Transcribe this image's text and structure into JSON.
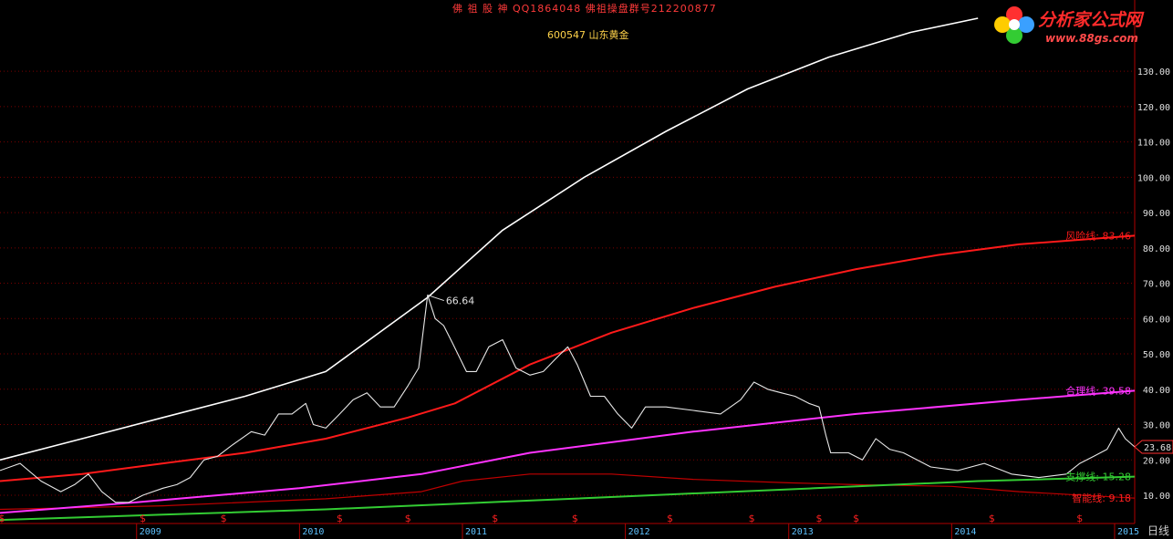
{
  "header": {
    "title": "佛 祖 股 神   QQ1864048  佛祖操盘群号212200877",
    "stock": "600547 山东黄金"
  },
  "logo": {
    "main": "分析家公式网",
    "url": "www.88gs.com"
  },
  "period_label": "日线",
  "colors": {
    "background": "#000000",
    "price": "#e8e8e8",
    "upper_curve": "#ffffff",
    "risk_line": "#ff1a1a",
    "fair_line": "#ff33ff",
    "support_line": "#33cc33",
    "smart_line": "#c00000",
    "grid": "#7a0000",
    "y_tick": "#e0e0e0",
    "x_tick": "#5ec2ff"
  },
  "chart_data": {
    "type": "line",
    "title": "600547 山东黄金",
    "xlabel": "",
    "ylabel": "",
    "x_range": [
      "2008-03-01",
      "2015-02-15"
    ],
    "ylim": [
      2.0,
      145.0
    ],
    "y_ticks": [
      10,
      20,
      30,
      40,
      50,
      60,
      70,
      80,
      90,
      100,
      110,
      120,
      130
    ],
    "x_ticks": [
      "2009",
      "2010",
      "2011",
      "2012",
      "2013",
      "2014",
      "2015"
    ],
    "grid": true,
    "last_price_tag": "23.68",
    "peak_annotation": {
      "date": "2010-10-15",
      "value": 66.64,
      "label": "66.64"
    },
    "series": [
      {
        "name": "",
        "role": "price",
        "points": [
          [
            "2008-03-01",
            17
          ],
          [
            "2008-04-15",
            19
          ],
          [
            "2008-06-01",
            14
          ],
          [
            "2008-07-15",
            11
          ],
          [
            "2008-08-15",
            13
          ],
          [
            "2008-09-15",
            16
          ],
          [
            "2008-10-15",
            11
          ],
          [
            "2008-11-15",
            8
          ],
          [
            "2008-12-15",
            8
          ],
          [
            "2009-01-15",
            10
          ],
          [
            "2009-03-01",
            12
          ],
          [
            "2009-04-01",
            13
          ],
          [
            "2009-05-01",
            15
          ],
          [
            "2009-06-01",
            20
          ],
          [
            "2009-07-01",
            21
          ],
          [
            "2009-08-01",
            24
          ],
          [
            "2009-09-15",
            28
          ],
          [
            "2009-10-15",
            27
          ],
          [
            "2009-11-15",
            33
          ],
          [
            "2009-12-15",
            33
          ],
          [
            "2010-01-15",
            36
          ],
          [
            "2010-02-01",
            30
          ],
          [
            "2010-03-01",
            29
          ],
          [
            "2010-04-01",
            33
          ],
          [
            "2010-05-01",
            37
          ],
          [
            "2010-06-01",
            39
          ],
          [
            "2010-07-01",
            35
          ],
          [
            "2010-08-01",
            35
          ],
          [
            "2010-09-01",
            41
          ],
          [
            "2010-09-25",
            46
          ],
          [
            "2010-10-15",
            66.64
          ],
          [
            "2010-11-01",
            60
          ],
          [
            "2010-11-20",
            58
          ],
          [
            "2010-12-10",
            53
          ],
          [
            "2011-01-10",
            45
          ],
          [
            "2011-02-01",
            45
          ],
          [
            "2011-03-01",
            52
          ],
          [
            "2011-04-01",
            54
          ],
          [
            "2011-05-01",
            46
          ],
          [
            "2011-06-01",
            44
          ],
          [
            "2011-07-01",
            45
          ],
          [
            "2011-08-01",
            49
          ],
          [
            "2011-08-25",
            52
          ],
          [
            "2011-09-15",
            47
          ],
          [
            "2011-10-15",
            38
          ],
          [
            "2011-11-15",
            38
          ],
          [
            "2011-12-15",
            33
          ],
          [
            "2012-01-15",
            29
          ],
          [
            "2012-02-15",
            35
          ],
          [
            "2012-04-01",
            35
          ],
          [
            "2012-06-01",
            34
          ],
          [
            "2012-08-01",
            33
          ],
          [
            "2012-09-15",
            37
          ],
          [
            "2012-10-15",
            42
          ],
          [
            "2012-11-15",
            40
          ],
          [
            "2012-12-15",
            39
          ],
          [
            "2013-01-15",
            38
          ],
          [
            "2013-02-15",
            36
          ],
          [
            "2013-03-10",
            35
          ],
          [
            "2013-03-25",
            27
          ],
          [
            "2013-04-05",
            22
          ],
          [
            "2013-05-15",
            22
          ],
          [
            "2013-06-15",
            20
          ],
          [
            "2013-07-15",
            26
          ],
          [
            "2013-08-15",
            23
          ],
          [
            "2013-09-15",
            22
          ],
          [
            "2013-11-15",
            18
          ],
          [
            "2014-01-15",
            17
          ],
          [
            "2014-03-15",
            19
          ],
          [
            "2014-05-15",
            16
          ],
          [
            "2014-07-15",
            15
          ],
          [
            "2014-09-15",
            16
          ],
          [
            "2014-10-15",
            19
          ],
          [
            "2014-11-15",
            21
          ],
          [
            "2014-12-15",
            23
          ],
          [
            "2015-01-10",
            29
          ],
          [
            "2015-01-25",
            26
          ],
          [
            "2015-02-15",
            23.68
          ]
        ]
      },
      {
        "name": "",
        "role": "upper_curve",
        "points": [
          [
            "2008-03-01",
            20
          ],
          [
            "2008-09-01",
            26
          ],
          [
            "2009-03-01",
            32
          ],
          [
            "2009-09-01",
            38
          ],
          [
            "2010-03-01",
            45
          ],
          [
            "2010-10-15",
            66
          ],
          [
            "2011-04-01",
            85
          ],
          [
            "2011-10-01",
            100
          ],
          [
            "2012-04-01",
            113
          ],
          [
            "2012-10-01",
            125
          ],
          [
            "2013-04-01",
            134
          ],
          [
            "2013-10-01",
            141
          ],
          [
            "2014-03-01",
            145
          ]
        ]
      },
      {
        "name": "风险线",
        "label_value": "83.46",
        "role": "risk_line",
        "points": [
          [
            "2008-03-01",
            14
          ],
          [
            "2008-09-01",
            16
          ],
          [
            "2009-03-01",
            19
          ],
          [
            "2009-09-01",
            22
          ],
          [
            "2010-03-01",
            26
          ],
          [
            "2010-09-01",
            32
          ],
          [
            "2010-12-15",
            36
          ],
          [
            "2011-06-01",
            47
          ],
          [
            "2011-12-01",
            56
          ],
          [
            "2012-06-01",
            63
          ],
          [
            "2012-12-01",
            69
          ],
          [
            "2013-06-01",
            74
          ],
          [
            "2013-12-01",
            78
          ],
          [
            "2014-06-01",
            81
          ],
          [
            "2015-02-15",
            83.46
          ]
        ]
      },
      {
        "name": "合理线",
        "label_value": "39.58",
        "role": "fair_line",
        "points": [
          [
            "2008-03-01",
            5
          ],
          [
            "2009-01-01",
            8
          ],
          [
            "2010-01-01",
            12
          ],
          [
            "2010-10-01",
            16
          ],
          [
            "2011-06-01",
            22
          ],
          [
            "2012-06-01",
            28
          ],
          [
            "2013-06-01",
            33
          ],
          [
            "2014-06-01",
            37
          ],
          [
            "2015-02-15",
            39.58
          ]
        ]
      },
      {
        "name": "支撑线",
        "label_value": "15.28",
        "role": "support_line",
        "points": [
          [
            "2008-03-01",
            3
          ],
          [
            "2009-03-01",
            4.5
          ],
          [
            "2010-03-01",
            6
          ],
          [
            "2011-03-01",
            8
          ],
          [
            "2012-03-01",
            10
          ],
          [
            "2013-03-01",
            12
          ],
          [
            "2014-03-01",
            14
          ],
          [
            "2015-02-15",
            15.28
          ]
        ]
      },
      {
        "name": "智能线",
        "label_value": "9.18",
        "role": "smart_line",
        "points": [
          [
            "2008-03-01",
            6
          ],
          [
            "2009-03-01",
            7
          ],
          [
            "2010-03-01",
            9
          ],
          [
            "2010-10-01",
            11
          ],
          [
            "2011-01-01",
            14
          ],
          [
            "2011-06-01",
            16
          ],
          [
            "2011-12-01",
            16
          ],
          [
            "2012-06-01",
            14.5
          ],
          [
            "2013-01-01",
            13.5
          ],
          [
            "2013-06-01",
            13
          ],
          [
            "2014-01-01",
            12.5
          ],
          [
            "2014-06-01",
            11
          ],
          [
            "2015-02-15",
            9.18
          ]
        ]
      }
    ],
    "signal_marks": {
      "symbol": "$",
      "dates": [
        "2008-03-05",
        "2009-01-15",
        "2009-07-15",
        "2010-04-01",
        "2010-09-01",
        "2011-03-15",
        "2011-09-10",
        "2012-04-10",
        "2012-10-10",
        "2013-03-10",
        "2013-06-01",
        "2014-04-01",
        "2014-10-15"
      ]
    }
  }
}
